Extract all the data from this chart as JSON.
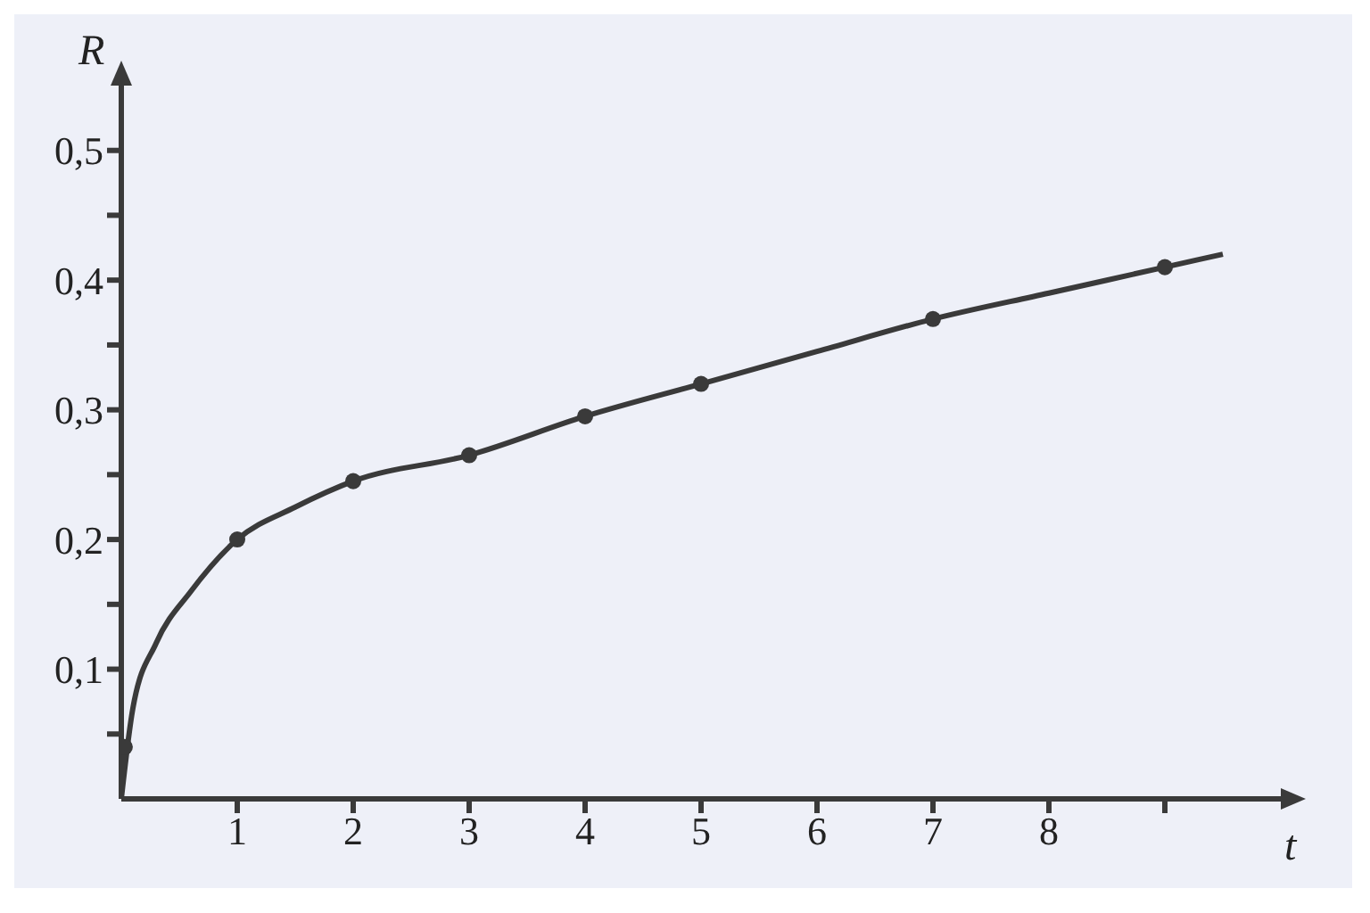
{
  "chart_data": {
    "type": "line",
    "xlabel": "t",
    "ylabel": "R",
    "xlim": [
      0,
      10
    ],
    "ylim": [
      0,
      0.55
    ],
    "xticks": [
      1,
      2,
      3,
      4,
      5,
      6,
      7,
      8,
      {
        "value": 9,
        "label": null
      }
    ],
    "yticks": [
      {
        "value": 0.05,
        "label": null
      },
      {
        "value": 0.1,
        "label": "0,1"
      },
      {
        "value": 0.15,
        "label": null
      },
      {
        "value": 0.2,
        "label": "0,2"
      },
      {
        "value": 0.25,
        "label": null
      },
      {
        "value": 0.3,
        "label": "0,3"
      },
      {
        "value": 0.35,
        "label": null
      },
      {
        "value": 0.4,
        "label": "0,4"
      },
      {
        "value": 0.45,
        "label": null
      },
      {
        "value": 0.5,
        "label": "0,5"
      }
    ],
    "grid": false,
    "series": [
      {
        "marker": "none",
        "color": "#3a3a3a",
        "x": [
          0,
          0.1,
          0.3,
          0.6,
          1,
          1.5,
          2,
          3,
          4,
          5,
          6,
          7,
          8,
          9,
          9.5
        ],
        "values": [
          0,
          0.07,
          0.12,
          0.16,
          0.2,
          0.225,
          0.245,
          0.265,
          0.295,
          0.32,
          0.345,
          0.37,
          0.39,
          0.41,
          0.42
        ]
      },
      {
        "type": "scatter",
        "marker": "circle",
        "color": "#3a3a3a",
        "x": [
          0.03,
          1,
          2,
          3,
          4,
          5,
          7,
          9
        ],
        "values": [
          0.04,
          0.2,
          0.245,
          0.265,
          0.295,
          0.32,
          0.37,
          0.41
        ]
      }
    ]
  }
}
